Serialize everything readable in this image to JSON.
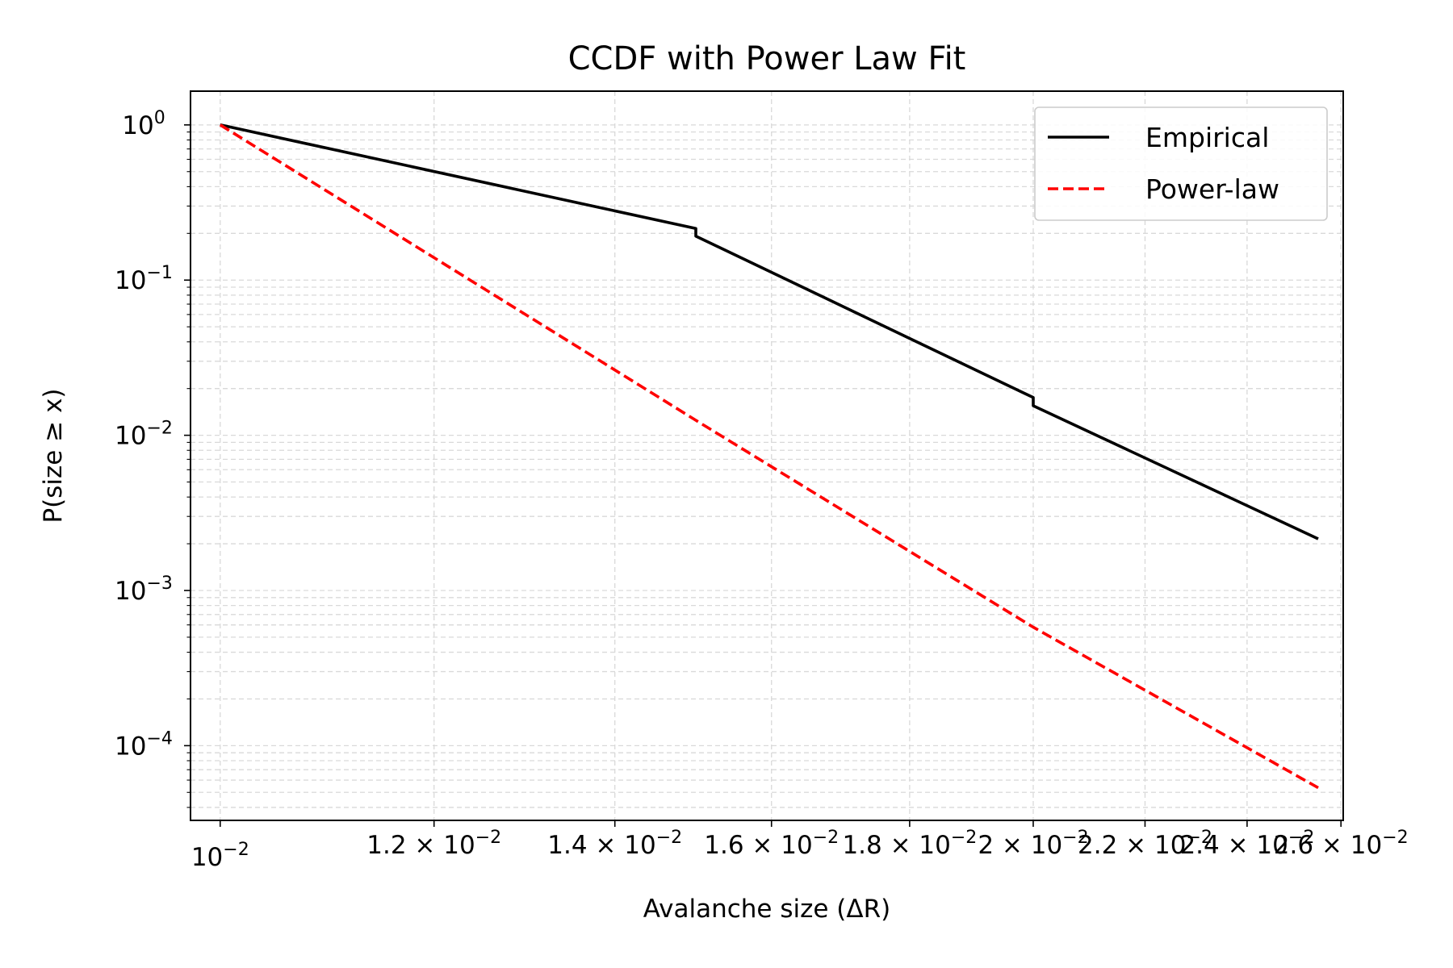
{
  "chart_data": {
    "type": "line",
    "title": "CCDF with Power Law Fit",
    "xlabel": "Avalanche size (ΔR)",
    "ylabel": "P(size ≥ x)",
    "xscale": "log",
    "yscale": "log",
    "xlim": [
      0.00975,
      0.02605
    ],
    "ylim": [
      3.3e-05,
      1.65
    ],
    "grid": true,
    "legend_position": "top-right",
    "x_ticks": [
      {
        "value": 0.01,
        "mantissa": "",
        "exp": "−2"
      },
      {
        "value": 0.012,
        "mantissa": "1.2",
        "exp": "−2"
      },
      {
        "value": 0.014,
        "mantissa": "1.4",
        "exp": "−2"
      },
      {
        "value": 0.016,
        "mantissa": "1.6",
        "exp": "−2"
      },
      {
        "value": 0.018,
        "mantissa": "1.8",
        "exp": "−2"
      },
      {
        "value": 0.02,
        "mantissa": "2",
        "exp": "−2"
      },
      {
        "value": 0.022,
        "mantissa": "2.2",
        "exp": "−2"
      },
      {
        "value": 0.024,
        "mantissa": "2.4",
        "exp": "−2"
      },
      {
        "value": 0.026,
        "mantissa": "2.6",
        "exp": "−2"
      }
    ],
    "y_ticks": [
      {
        "value": 1,
        "exp": "0"
      },
      {
        "value": 0.1,
        "exp": "−1"
      },
      {
        "value": 0.01,
        "exp": "−2"
      },
      {
        "value": 0.001,
        "exp": "−3"
      },
      {
        "value": 0.0001,
        "exp": "−4"
      }
    ],
    "series": [
      {
        "name": "Empirical",
        "color": "#000000",
        "dash": "solid",
        "x": [
          0.01,
          0.015,
          0.015,
          0.02,
          0.02,
          0.0255
        ],
        "y": [
          1.0,
          0.215,
          0.192,
          0.0175,
          0.0155,
          0.00215
        ]
      },
      {
        "name": "Power-law",
        "color": "#ff0000",
        "dash": "dashed",
        "x": [
          0.01,
          0.015,
          0.02,
          0.0255
        ],
        "y": [
          1.0,
          0.0125,
          0.00058,
          5.35e-05
        ]
      }
    ]
  }
}
